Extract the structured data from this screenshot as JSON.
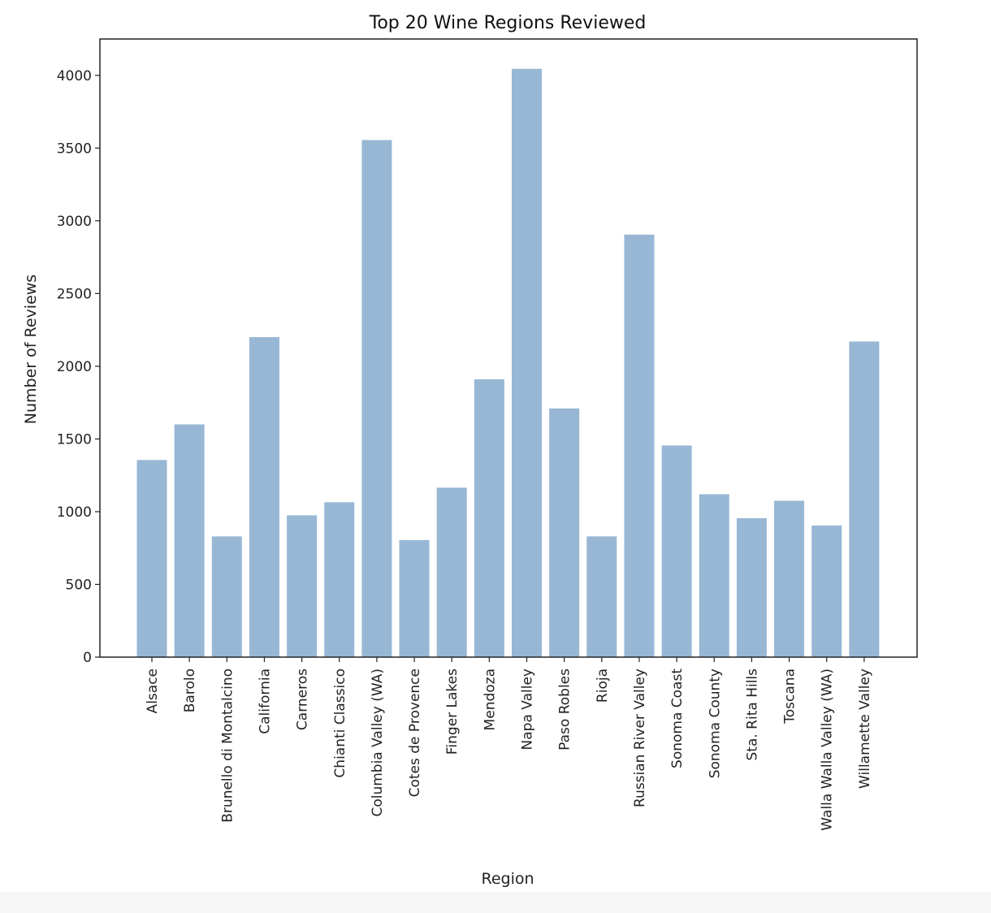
{
  "chart_data": {
    "type": "bar",
    "title": "Top 20 Wine Regions Reviewed",
    "xlabel": "Region",
    "ylabel": "Number of Reviews",
    "categories": [
      "Alsace",
      "Barolo",
      "Brunello di Montalcino",
      "California",
      "Carneros",
      "Chianti Classico",
      "Columbia Valley (WA)",
      "Cotes de Provence",
      "Finger Lakes",
      "Mendoza",
      "Napa Valley",
      "Paso Robles",
      "Rioja",
      "Russian River Valley",
      "Sonoma Coast",
      "Sonoma County",
      "Sta. Rita Hills",
      "Toscana",
      "Walla Walla Valley (WA)",
      "Willamette Valley"
    ],
    "values": [
      1355,
      1600,
      830,
      2200,
      975,
      1065,
      3555,
      805,
      1165,
      1910,
      4045,
      1710,
      830,
      2905,
      1455,
      1120,
      955,
      1075,
      905,
      2170
    ],
    "yticks": [
      0,
      500,
      1000,
      1500,
      2000,
      2500,
      3000,
      3500,
      4000
    ],
    "ylim": [
      0,
      4250
    ],
    "bar_color": "#97b7d5",
    "grid": false
  }
}
